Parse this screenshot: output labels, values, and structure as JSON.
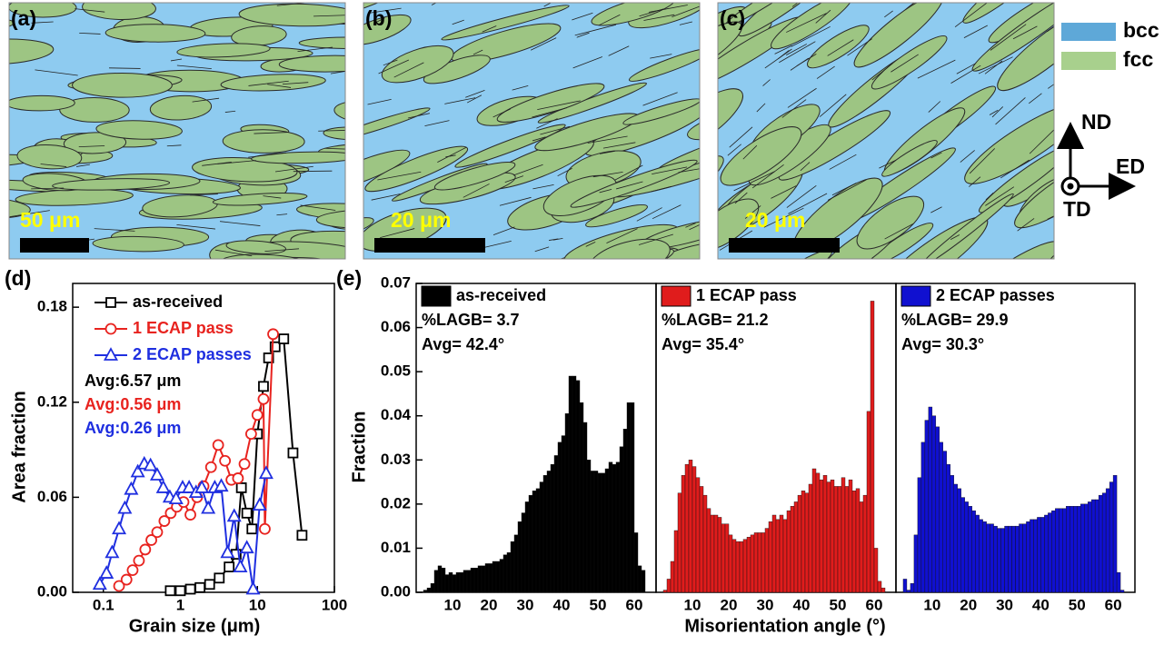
{
  "maps": [
    {
      "label": "(a)",
      "scale": "50 μm",
      "tilt": 0
    },
    {
      "label": "(b)",
      "scale": "20 μm",
      "tilt": -18
    },
    {
      "label": "(c)",
      "scale": "20 μm",
      "tilt": -35
    }
  ],
  "phase_legend": [
    {
      "name": "bcc",
      "color": "#8ecbf0",
      "swatch": "#5ea8d8"
    },
    {
      "name": "fcc",
      "color": "#9dc583",
      "swatch": "#a8d08d"
    }
  ],
  "directions": {
    "up": "ND",
    "right": "ED",
    "out": "TD"
  },
  "chart_data": [
    {
      "type": "line",
      "panel_label": "(d)",
      "xlabel": "Grain size (μm)",
      "ylabel": "Area fraction",
      "xscale": "log",
      "xlim": [
        0.04,
        100
      ],
      "xticks": [
        0.1,
        1,
        10,
        100
      ],
      "ylim": [
        0,
        0.195
      ],
      "yticks": [
        {
          "value": 0,
          "label": "0.00"
        },
        0.06,
        0.12,
        0.18
      ],
      "series": [
        {
          "name": "as-received",
          "color": "#000000",
          "marker": "square",
          "x": [
            0.74,
            1.0,
            1.35,
            1.8,
            2.4,
            3.2,
            4.3,
            5.3,
            6.2,
            7.3,
            8.5,
            10,
            12,
            14,
            17,
            22,
            29,
            38
          ],
          "values": [
            0.001,
            0.001,
            0.002,
            0.003,
            0.005,
            0.009,
            0.016,
            0.024,
            0.066,
            0.05,
            0.04,
            0.1,
            0.13,
            0.148,
            0.155,
            0.16,
            0.088,
            0.036
          ]
        },
        {
          "name": "1 ECAP pass",
          "color": "#e8231f",
          "marker": "circle",
          "x": [
            0.16,
            0.2,
            0.24,
            0.29,
            0.35,
            0.42,
            0.5,
            0.62,
            0.75,
            0.9,
            1.1,
            1.35,
            1.65,
            2,
            2.5,
            3.1,
            3.8,
            4.6,
            5.6,
            6.8,
            8.3,
            10,
            12,
            12.5,
            16
          ],
          "values": [
            0.004,
            0.008,
            0.014,
            0.02,
            0.027,
            0.033,
            0.038,
            0.045,
            0.05,
            0.054,
            0.057,
            0.049,
            0.06,
            0.067,
            0.079,
            0.093,
            0.083,
            0.071,
            0.072,
            0.081,
            0.1,
            0.112,
            0.122,
            0.04,
            0.163
          ]
        },
        {
          "name": "2 ECAP passes",
          "color": "#1f2fe0",
          "marker": "triangle",
          "x": [
            0.09,
            0.11,
            0.13,
            0.16,
            0.19,
            0.23,
            0.28,
            0.34,
            0.41,
            0.5,
            0.6,
            0.73,
            0.88,
            1.07,
            1.3,
            1.6,
            1.9,
            2.3,
            2.8,
            3.4,
            4.1,
            5,
            6,
            7.3,
            8.8,
            10.7,
            13
          ],
          "values": [
            0.005,
            0.012,
            0.025,
            0.04,
            0.053,
            0.065,
            0.076,
            0.081,
            0.08,
            0.074,
            0.066,
            0.06,
            0.059,
            0.066,
            0.066,
            0.063,
            0.066,
            0.053,
            0.066,
            0.067,
            0.025,
            0.048,
            0.016,
            0.028,
            0.002,
            0.055,
            0.075
          ]
        }
      ],
      "annotations": [
        {
          "text": "Avg:6.57 μm",
          "color": "#000000"
        },
        {
          "text": "Avg:0.56 μm",
          "color": "#e8231f"
        },
        {
          "text": "Avg:0.26 μm",
          "color": "#1f2fe0"
        }
      ]
    },
    {
      "type": "histogram",
      "panel_label": "(e)",
      "ylabel": "Fraction",
      "xlim": [
        0,
        66
      ],
      "xticks": [
        10,
        20,
        30,
        40,
        50,
        60
      ],
      "ylim": [
        0,
        0.07
      ],
      "yticks": [
        {
          "value": 0,
          "label": "0.00"
        },
        0.01,
        0.02,
        0.03,
        0.04,
        0.05,
        0.06,
        0.07
      ],
      "series": [
        {
          "name": "as-received",
          "color": "#000000",
          "bins": [
            2,
            3,
            4,
            5,
            6,
            7,
            8,
            9,
            10,
            11,
            12,
            13,
            14,
            15,
            16,
            17,
            18,
            19,
            20,
            21,
            22,
            23,
            24,
            25,
            26,
            27,
            28,
            29,
            30,
            31,
            32,
            33,
            34,
            35,
            36,
            37,
            38,
            39,
            40,
            41,
            42,
            43,
            44,
            45,
            46,
            47,
            48,
            49,
            50,
            51,
            52,
            53,
            54,
            55,
            56,
            57,
            58,
            59,
            60,
            61,
            62,
            63
          ],
          "values": [
            0.0005,
            0.001,
            0.002,
            0.005,
            0.006,
            0.0055,
            0.004,
            0.0045,
            0.004,
            0.0045,
            0.0045,
            0.005,
            0.005,
            0.0055,
            0.0055,
            0.006,
            0.006,
            0.0065,
            0.0065,
            0.007,
            0.007,
            0.0075,
            0.0085,
            0.009,
            0.0115,
            0.013,
            0.016,
            0.018,
            0.0205,
            0.022,
            0.023,
            0.0235,
            0.025,
            0.0265,
            0.0275,
            0.029,
            0.031,
            0.034,
            0.0355,
            0.0405,
            0.049,
            0.049,
            0.048,
            0.043,
            0.0385,
            0.03,
            0.0275,
            0.0275,
            0.027,
            0.027,
            0.028,
            0.0295,
            0.029,
            0.0295,
            0.033,
            0.037,
            0.043,
            0.043,
            0.0135,
            0.006,
            0.005
          ]
        }
      ],
      "annotations": [
        "%LAGB= 3.7",
        "Avg= 42.4°"
      ]
    },
    {
      "type": "histogram",
      "xlabel": "Misorientation angle (°)",
      "xlim": [
        0,
        66
      ],
      "xticks": [
        10,
        20,
        30,
        40,
        50,
        60
      ],
      "ylim": [
        0,
        0.07
      ],
      "series": [
        {
          "name": "1 ECAP pass",
          "color": "#e01c1c",
          "bins": [
            2,
            3,
            4,
            5,
            6,
            7,
            8,
            9,
            10,
            11,
            12,
            13,
            14,
            15,
            16,
            17,
            18,
            19,
            20,
            21,
            22,
            23,
            24,
            25,
            26,
            27,
            28,
            29,
            30,
            31,
            32,
            33,
            34,
            35,
            36,
            37,
            38,
            39,
            40,
            41,
            42,
            43,
            44,
            45,
            46,
            47,
            48,
            49,
            50,
            51,
            52,
            53,
            54,
            55,
            56,
            57,
            58,
            59,
            60,
            61,
            62,
            63
          ],
          "values": [
            0.0005,
            0.003,
            0.007,
            0.014,
            0.0225,
            0.0265,
            0.029,
            0.03,
            0.0285,
            0.026,
            0.024,
            0.022,
            0.019,
            0.0175,
            0.0175,
            0.017,
            0.0155,
            0.0155,
            0.013,
            0.012,
            0.0115,
            0.0115,
            0.012,
            0.0125,
            0.013,
            0.0135,
            0.0135,
            0.0135,
            0.0145,
            0.016,
            0.0175,
            0.0165,
            0.0175,
            0.0165,
            0.0185,
            0.0195,
            0.0205,
            0.022,
            0.023,
            0.0225,
            0.0245,
            0.028,
            0.027,
            0.0255,
            0.0265,
            0.025,
            0.0255,
            0.024,
            0.024,
            0.026,
            0.024,
            0.0255,
            0.023,
            0.0235,
            0.0205,
            0.022,
            0.041,
            0.066,
            0.01,
            0.0025,
            0.001
          ]
        }
      ],
      "annotations": [
        "%LAGB= 21.2",
        "Avg= 35.4°"
      ]
    },
    {
      "type": "histogram",
      "xlim": [
        0,
        66
      ],
      "xticks": [
        10,
        20,
        30,
        40,
        50,
        60
      ],
      "ylim": [
        0,
        0.07
      ],
      "series": [
        {
          "name": "2 ECAP passes",
          "color": "#1010d0",
          "bins": [
            2,
            3,
            4,
            5,
            6,
            7,
            8,
            9,
            10,
            11,
            12,
            13,
            14,
            15,
            16,
            17,
            18,
            19,
            20,
            21,
            22,
            23,
            24,
            25,
            26,
            27,
            28,
            29,
            30,
            31,
            32,
            33,
            34,
            35,
            36,
            37,
            38,
            39,
            40,
            41,
            42,
            43,
            44,
            45,
            46,
            47,
            48,
            49,
            50,
            51,
            52,
            53,
            54,
            55,
            56,
            57,
            58,
            59,
            60,
            61,
            62,
            63
          ],
          "values": [
            0.003,
            0.0005,
            0.002,
            0.013,
            0.026,
            0.034,
            0.039,
            0.042,
            0.04,
            0.0375,
            0.034,
            0.032,
            0.029,
            0.0265,
            0.0245,
            0.0235,
            0.0215,
            0.0205,
            0.0195,
            0.0185,
            0.0175,
            0.0165,
            0.016,
            0.0155,
            0.0155,
            0.015,
            0.0145,
            0.0145,
            0.015,
            0.015,
            0.015,
            0.015,
            0.0155,
            0.0155,
            0.016,
            0.0165,
            0.0165,
            0.017,
            0.017,
            0.0175,
            0.018,
            0.0185,
            0.019,
            0.019,
            0.019,
            0.0195,
            0.0195,
            0.0195,
            0.0195,
            0.02,
            0.02,
            0.0205,
            0.021,
            0.021,
            0.022,
            0.0225,
            0.0235,
            0.025,
            0.0265,
            0.0045,
            0.0005
          ]
        }
      ],
      "annotations": [
        "%LAGB= 29.9",
        "Avg= 30.3°"
      ]
    }
  ]
}
